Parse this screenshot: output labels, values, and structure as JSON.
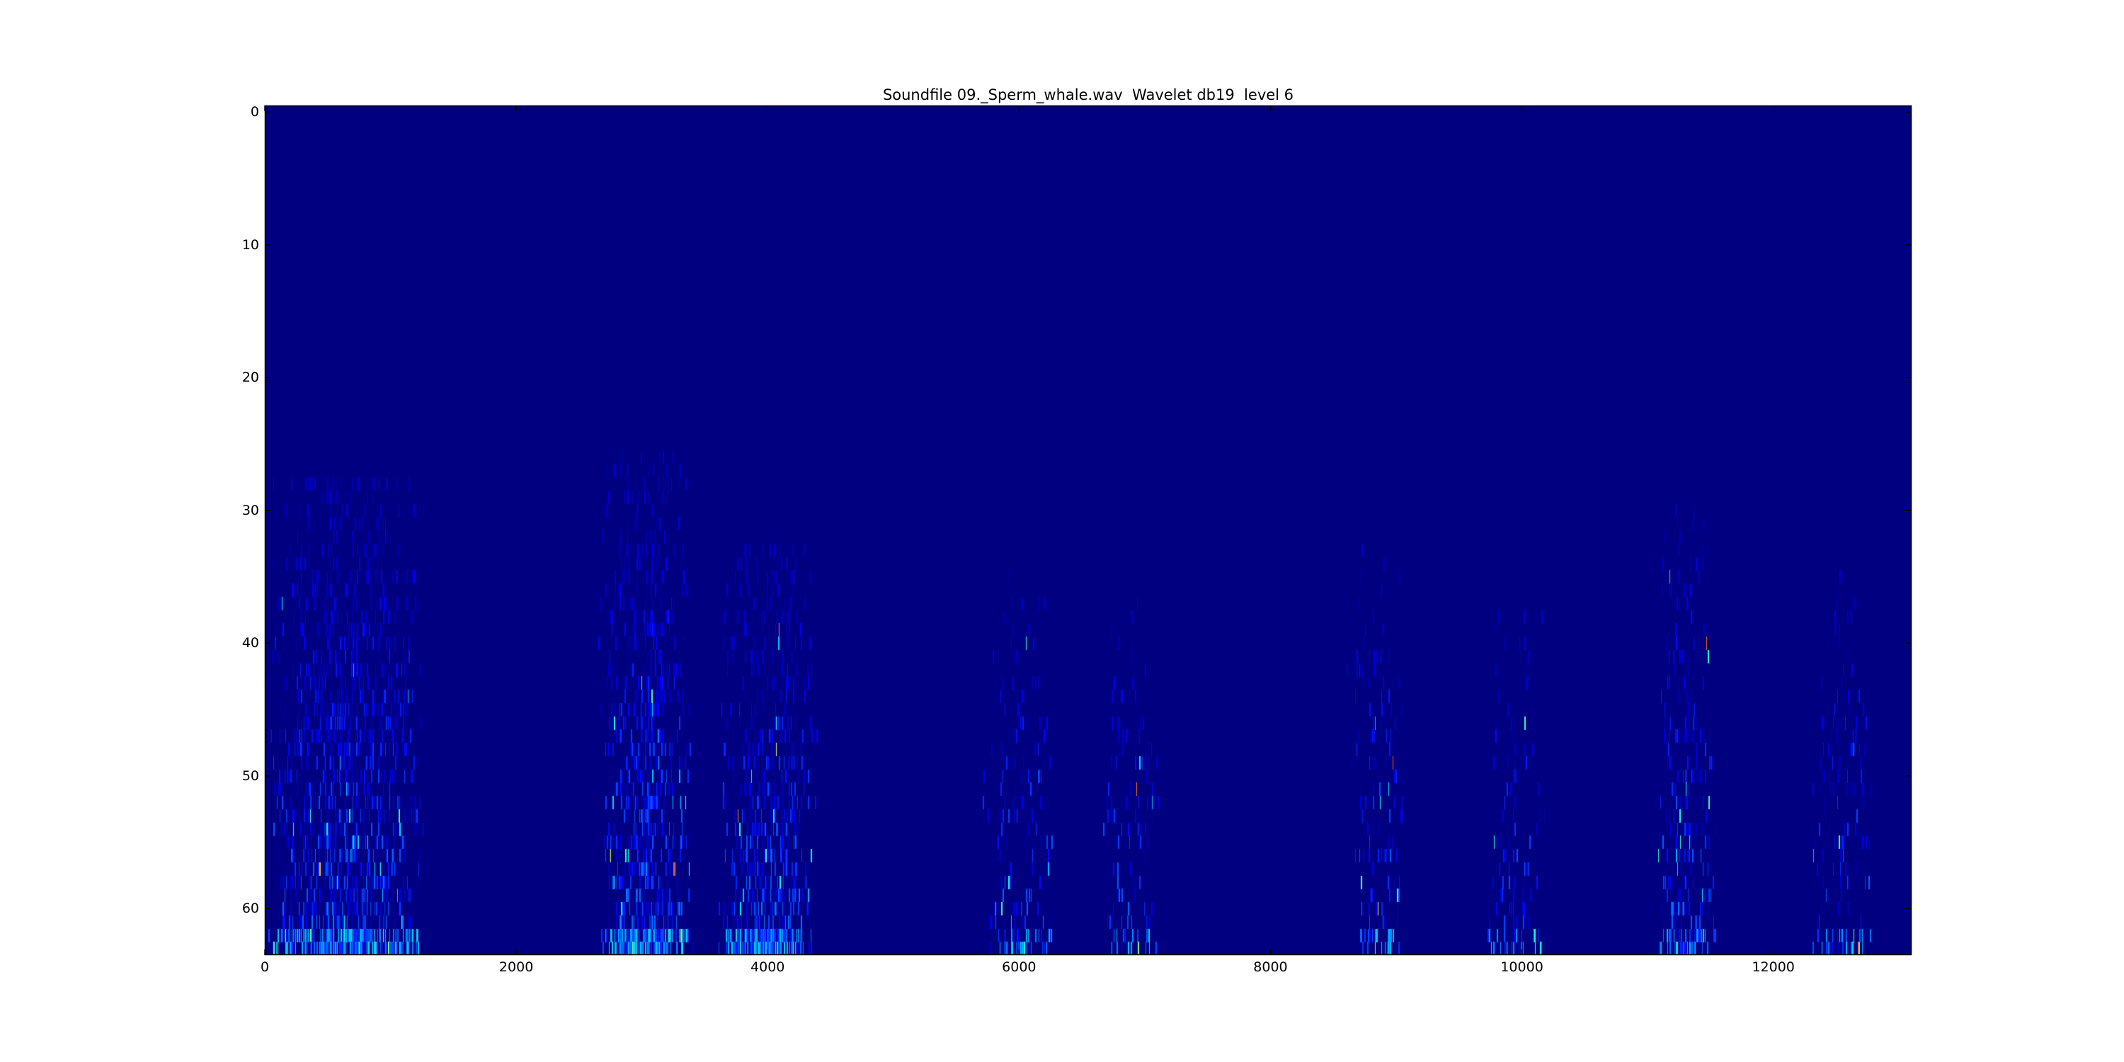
{
  "chart_data": {
    "type": "heatmap",
    "title": "Soundfile 09._Sperm_whale.wav  Wavelet db19  level 6",
    "xlabel": "",
    "ylabel": "",
    "colormap": "jet",
    "xlim": [
      0,
      13100
    ],
    "ylim": [
      63.5,
      -0.5
    ],
    "y_inverted": true,
    "rows": 64,
    "grid": false,
    "x_ticks": [
      "0",
      "2000",
      "4000",
      "6000",
      "8000",
      "10000",
      "12000"
    ],
    "y_ticks": [
      "0",
      "10",
      "20",
      "30",
      "40",
      "50",
      "60"
    ],
    "background_value_color": "#000080",
    "activity_clusters": [
      {
        "x": [
          0,
          1300
        ],
        "rows": [
          28,
          63
        ],
        "density": "high"
      },
      {
        "x": [
          2650,
          3400
        ],
        "rows": [
          26,
          63
        ],
        "density": "high"
      },
      {
        "x": [
          3600,
          4400
        ],
        "rows": [
          33,
          63
        ],
        "density": "high"
      },
      {
        "x": [
          5700,
          6300
        ],
        "rows": [
          35,
          63
        ],
        "density": "low"
      },
      {
        "x": [
          6650,
          7150
        ],
        "rows": [
          37,
          63
        ],
        "density": "low"
      },
      {
        "x": [
          8600,
          9100
        ],
        "rows": [
          33,
          63
        ],
        "density": "low"
      },
      {
        "x": [
          9700,
          10200
        ],
        "rows": [
          37,
          63
        ],
        "density": "low"
      },
      {
        "x": [
          11050,
          11550
        ],
        "rows": [
          30,
          63
        ],
        "density": "medium"
      },
      {
        "x": [
          12300,
          12800
        ],
        "rows": [
          35,
          63
        ],
        "density": "low"
      }
    ]
  }
}
